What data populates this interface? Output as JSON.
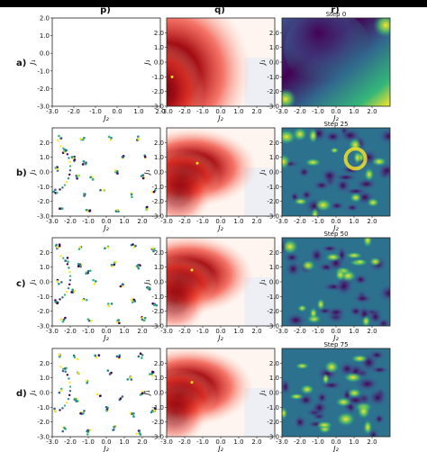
{
  "figure": {
    "column_labels": [
      "p)",
      "q)",
      "r)"
    ],
    "row_labels": [
      "a)",
      "b)",
      "c)",
      "d)"
    ],
    "axis_label_x": "J₂",
    "axis_label_y": "J₁",
    "colors": {
      "scatter_palette": [
        "#440154",
        "#31688e",
        "#35b779",
        "#fde725",
        "#21918c"
      ],
      "heat_dark": "#67000d",
      "heat_light": "#fff5f0",
      "heat_cool": "#e8eef5",
      "viridis_dark": "#440154",
      "viridis_light": "#fde725"
    }
  },
  "chart_data": [
    {
      "type": "scatter",
      "panel": "p-a",
      "row": "a)",
      "column": "p)",
      "xlim": [
        -3.0,
        2.0
      ],
      "ylim": [
        -3.0,
        2.0
      ],
      "x_ticks": [
        "-3.0",
        "-2.0",
        "-1.0",
        "0.0",
        "1.0",
        "2.0"
      ],
      "y_ticks": [
        "-3.0",
        "-2.0",
        "-1.0",
        "0.0",
        "1.0",
        "2.0"
      ],
      "points": []
    },
    {
      "type": "heatmap",
      "panel": "q-a",
      "row": "a)",
      "column": "q)",
      "xlim": [
        -3.0,
        3.0
      ],
      "ylim": [
        -3.0,
        3.0
      ],
      "x_ticks": [
        "-3.0",
        "-2.0",
        "-1.0",
        "0.0",
        "1.0",
        "2.0"
      ],
      "y_ticks": [
        "-3.0",
        "-2.0",
        "-1.0",
        "0.0",
        "1.0",
        "2.0"
      ],
      "peak": [
        -2.3,
        -0.7
      ],
      "marker": [
        -2.7,
        -1.0
      ]
    },
    {
      "type": "heatmap",
      "panel": "r-a",
      "row": "a)",
      "column": "r)",
      "title": "Step 0",
      "xlim": [
        -3.0,
        3.0
      ],
      "ylim": [
        -3.0,
        3.0
      ],
      "x_ticks": [
        "-3.0",
        "-2.0",
        "-1.0",
        "0.0",
        "1.0",
        "2.0"
      ],
      "y_ticks": [
        "-3.0",
        "-2.0",
        "-1.0",
        "0.0",
        "1.0",
        "2.0"
      ]
    },
    {
      "type": "scatter",
      "panel": "p-b",
      "row": "b)",
      "column": "p)",
      "xlim": [
        -3.0,
        3.0
      ],
      "ylim": [
        -3.0,
        3.0
      ],
      "x_ticks": [
        "-3.0",
        "-2.0",
        "-1.0",
        "0.0",
        "1.0",
        "2.0"
      ],
      "y_ticks": [
        "-3.0",
        "-2.0",
        "-1.0",
        "0.0",
        "1.0",
        "2.0"
      ],
      "clusters": [
        [
          -2.6,
          2.3
        ],
        [
          -1.3,
          2.3
        ],
        [
          0.2,
          2.3
        ],
        [
          1.7,
          2.3
        ],
        [
          -2.3,
          1.4
        ],
        [
          -1.8,
          0.9
        ],
        [
          -1.2,
          0.6
        ],
        [
          1.0,
          1.1
        ],
        [
          2.2,
          1.0
        ],
        [
          -2.7,
          0.2
        ],
        [
          -1.6,
          -0.3
        ],
        [
          -0.8,
          -0.4
        ],
        [
          0.6,
          0.0
        ],
        [
          2.0,
          -0.3
        ],
        [
          -2.8,
          -1.3
        ],
        [
          -1.3,
          -1.5
        ],
        [
          -0.2,
          -1.2
        ],
        [
          1.3,
          -1.6
        ],
        [
          2.6,
          -1.3
        ],
        [
          -2.5,
          -2.4
        ],
        [
          -1.0,
          -2.6
        ],
        [
          0.6,
          -2.6
        ],
        [
          2.2,
          -2.5
        ]
      ]
    },
    {
      "type": "heatmap",
      "panel": "q-b",
      "row": "b)",
      "column": "q)",
      "xlim": [
        -3.0,
        3.0
      ],
      "ylim": [
        -3.0,
        3.0
      ],
      "x_ticks": [
        "-3.0",
        "-2.0",
        "-1.0",
        "0.0",
        "1.0",
        "2.0"
      ],
      "y_ticks": [
        "-3.0",
        "-2.0",
        "-1.0",
        "0.0",
        "1.0",
        "2.0"
      ],
      "peak": [
        -1.6,
        0.3
      ],
      "marker": [
        -1.3,
        0.6
      ]
    },
    {
      "type": "heatmap",
      "panel": "r-b",
      "row": "b)",
      "column": "r)",
      "title": "Step 25",
      "xlim": [
        -3.0,
        3.0
      ],
      "ylim": [
        -3.0,
        3.0
      ],
      "x_ticks": [
        "-3.0",
        "-2.0",
        "-1.0",
        "0.0",
        "1.0",
        "2.0"
      ],
      "y_ticks": [
        "-3.0",
        "-2.0",
        "-1.0",
        "0.0",
        "1.0",
        "2.0"
      ]
    },
    {
      "type": "scatter",
      "panel": "p-c",
      "row": "c)",
      "column": "p)",
      "xlim": [
        -3.0,
        3.0
      ],
      "ylim": [
        -3.0,
        3.0
      ],
      "x_ticks": [
        "-3.0",
        "-2.0",
        "-1.0",
        "0.0",
        "1.0",
        "2.0"
      ],
      "y_ticks": [
        "-3.0",
        "-2.0",
        "-1.0",
        "0.0",
        "1.0",
        "2.0"
      ],
      "clusters": [
        [
          -2.7,
          2.4
        ],
        [
          -1.4,
          2.3
        ],
        [
          0.0,
          2.3
        ],
        [
          1.5,
          2.4
        ],
        [
          2.6,
          2.2
        ],
        [
          -2.2,
          1.5
        ],
        [
          -1.5,
          1.1
        ],
        [
          -1.0,
          0.7
        ],
        [
          0.4,
          1.2
        ],
        [
          1.8,
          1.0
        ],
        [
          -2.6,
          0.0
        ],
        [
          -1.8,
          -0.6
        ],
        [
          -0.6,
          0.0
        ],
        [
          0.9,
          -0.2
        ],
        [
          2.3,
          -0.4
        ],
        [
          -2.8,
          -1.4
        ],
        [
          -1.2,
          -1.2
        ],
        [
          0.2,
          -1.5
        ],
        [
          1.5,
          -1.3
        ],
        [
          2.7,
          -1.6
        ],
        [
          -2.4,
          -2.6
        ],
        [
          -0.9,
          -2.5
        ],
        [
          0.7,
          -2.7
        ],
        [
          2.1,
          -2.5
        ]
      ]
    },
    {
      "type": "heatmap",
      "panel": "q-c",
      "row": "c)",
      "column": "q)",
      "xlim": [
        -3.0,
        3.0
      ],
      "ylim": [
        -3.0,
        3.0
      ],
      "x_ticks": [
        "-3.0",
        "-2.0",
        "-1.0",
        "0.0",
        "1.0",
        "2.0"
      ],
      "y_ticks": [
        "-3.0",
        "-2.0",
        "-1.0",
        "0.0",
        "1.0",
        "2.0"
      ],
      "peak": [
        -1.8,
        0.5
      ],
      "marker": [
        -1.6,
        0.8
      ]
    },
    {
      "type": "heatmap",
      "panel": "r-c",
      "row": "c)",
      "column": "r)",
      "title": "Step 50",
      "xlim": [
        -3.0,
        3.0
      ],
      "ylim": [
        -3.0,
        3.0
      ],
      "x_ticks": [
        "-3.0",
        "-2.0",
        "-1.0",
        "0.0",
        "1.0",
        "2.0"
      ],
      "y_ticks": [
        "-3.0",
        "-2.0",
        "-1.0",
        "0.0",
        "1.0",
        "2.0"
      ]
    },
    {
      "type": "scatter",
      "panel": "p-d",
      "row": "d)",
      "column": "p)",
      "xlim": [
        -3.0,
        3.0
      ],
      "ylim": [
        -3.0,
        3.0
      ],
      "x_ticks": [
        "-3.0",
        "-2.0",
        "-1.0",
        "0.0",
        "1.0",
        "2.0"
      ],
      "y_ticks": [
        "-3.0",
        "-2.0",
        "-1.0",
        "0.0",
        "1.0",
        "2.0"
      ],
      "clusters": [
        [
          -2.7,
          2.5
        ],
        [
          -1.7,
          2.4
        ],
        [
          -0.5,
          2.5
        ],
        [
          0.7,
          2.4
        ],
        [
          1.9,
          2.5
        ],
        [
          -2.3,
          1.6
        ],
        [
          -1.6,
          1.2
        ],
        [
          -1.1,
          0.8
        ],
        [
          0.2,
          1.4
        ],
        [
          1.3,
          1.0
        ],
        [
          2.5,
          1.3
        ],
        [
          -2.6,
          0.1
        ],
        [
          -1.7,
          -0.5
        ],
        [
          -0.4,
          -0.1
        ],
        [
          0.8,
          -0.4
        ],
        [
          2.0,
          0.0
        ],
        [
          -2.8,
          -1.2
        ],
        [
          -1.3,
          -1.4
        ],
        [
          0.0,
          -1.1
        ],
        [
          1.4,
          -1.5
        ],
        [
          2.6,
          -1.2
        ],
        [
          -2.3,
          -2.5
        ],
        [
          -1.0,
          -2.7
        ],
        [
          0.5,
          -2.4
        ],
        [
          1.8,
          -2.7
        ]
      ]
    },
    {
      "type": "heatmap",
      "panel": "q-d",
      "row": "d)",
      "column": "q)",
      "xlim": [
        -3.0,
        3.0
      ],
      "ylim": [
        -3.0,
        3.0
      ],
      "x_ticks": [
        "-3.0",
        "-2.0",
        "-1.0",
        "0.0",
        "1.0",
        "2.0"
      ],
      "y_ticks": [
        "-3.0",
        "-2.0",
        "-1.0",
        "0.0",
        "1.0",
        "2.0"
      ],
      "peak": [
        -1.8,
        0.4
      ],
      "marker": [
        -1.6,
        0.7
      ]
    },
    {
      "type": "heatmap",
      "panel": "r-d",
      "row": "d)",
      "column": "r)",
      "title": "Step 75",
      "xlim": [
        -3.0,
        3.0
      ],
      "ylim": [
        -3.0,
        3.0
      ],
      "x_ticks": [
        "-3.0",
        "-2.0",
        "-1.0",
        "0.0",
        "1.0",
        "2.0"
      ],
      "y_ticks": [
        "-3.0",
        "-2.0",
        "-1.0",
        "0.0",
        "1.0",
        "2.0"
      ]
    }
  ]
}
